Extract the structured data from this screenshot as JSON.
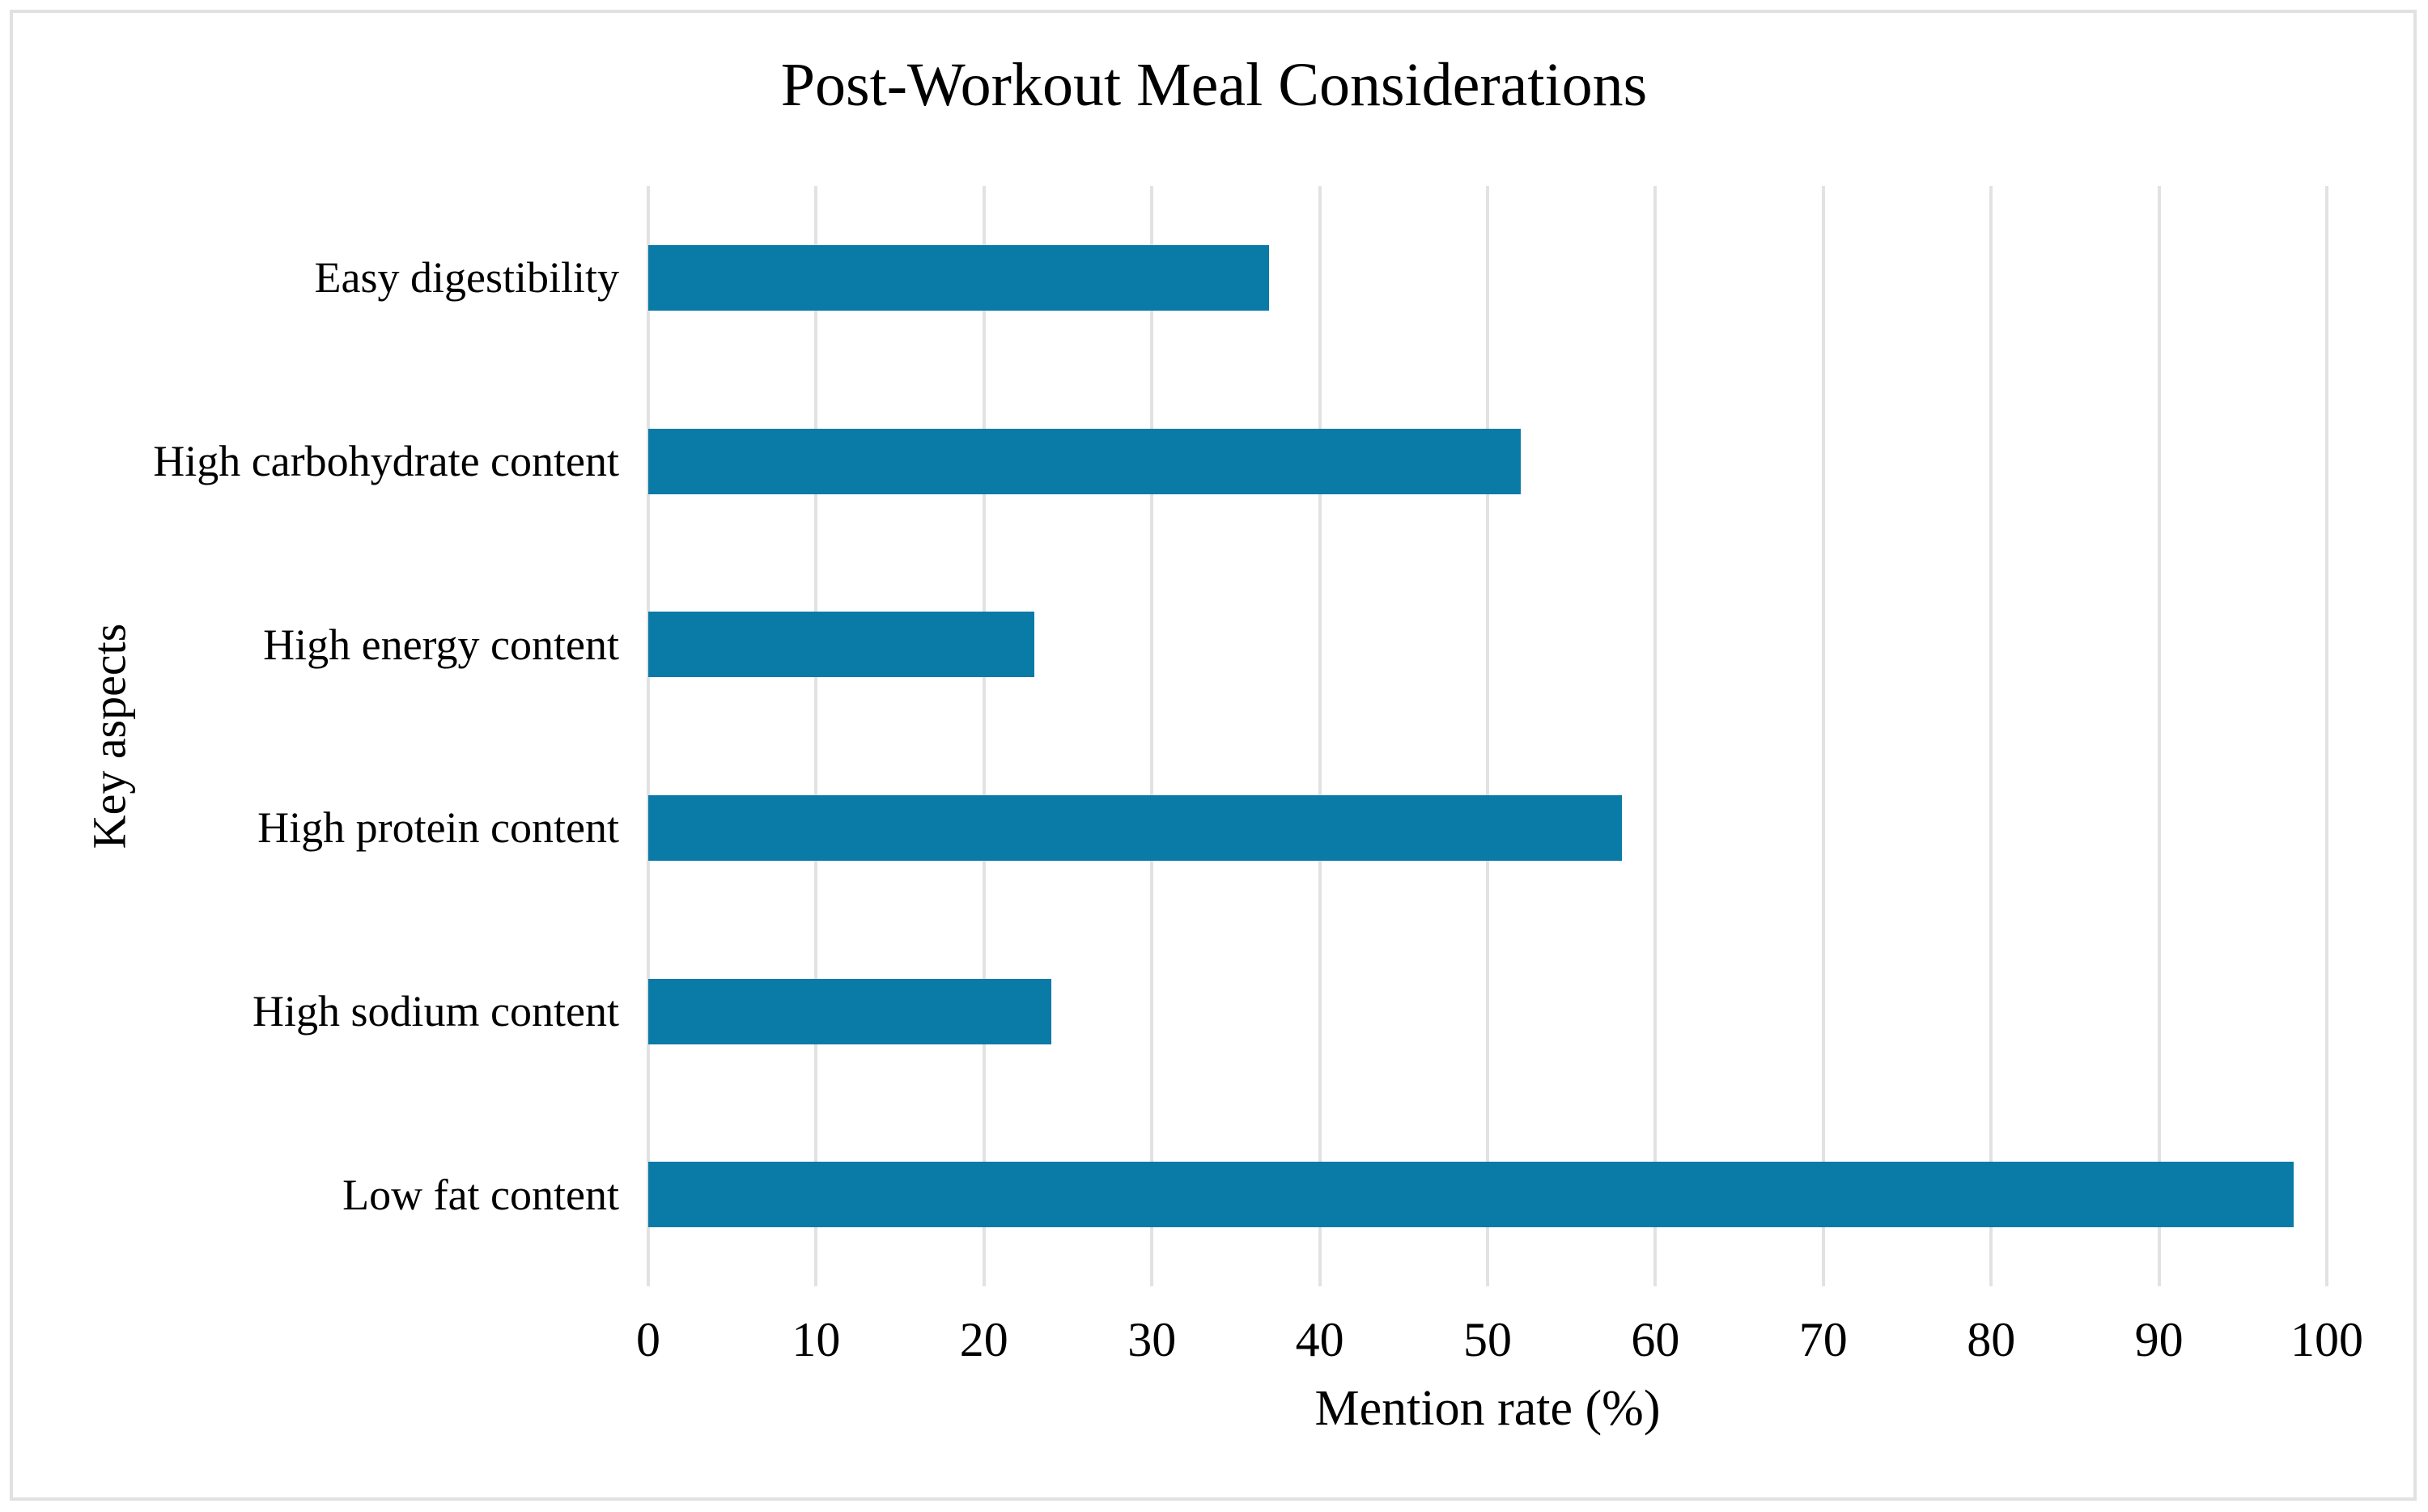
{
  "chart_data": {
    "type": "bar",
    "orientation": "horizontal",
    "title": "Post-Workout Meal Considerations",
    "xlabel": "Mention rate (%)",
    "ylabel": "Key aspects",
    "categories": [
      "Easy digestibility",
      "High carbohydrate content",
      "High energy content",
      "High protein content",
      "High sodium content",
      "Low fat content"
    ],
    "values": [
      37,
      52,
      23,
      58,
      24,
      98
    ],
    "xlim": [
      0,
      100
    ],
    "xticks": [
      0,
      10,
      20,
      30,
      40,
      50,
      60,
      70,
      80,
      90,
      100
    ],
    "grid": "vertical-gridlines-on",
    "legend": "none",
    "bar_color": "#0a7aa7",
    "gridline_color": "#e2e2e2",
    "frame_color": "#e1e1e1",
    "text_color": "#000000"
  }
}
